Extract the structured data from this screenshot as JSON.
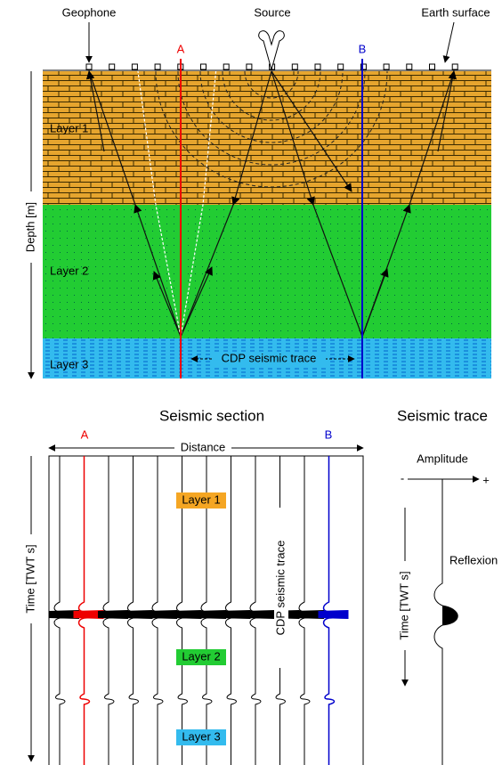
{
  "top": {
    "geophone": "Geophone",
    "source": "Source",
    "earth_surface": "Earth surface",
    "a": "A",
    "b": "B",
    "layers": [
      "Layer 1",
      "Layer 2",
      "Layer 3"
    ],
    "depth_axis": "Depth [m]",
    "cdp_label": "CDP seismic trace"
  },
  "bottom": {
    "section_title": "Seismic section",
    "trace_title": "Seismic trace",
    "distance": "Distance",
    "a": "A",
    "b": "B",
    "layers": [
      "Layer 1",
      "Layer 2",
      "Layer 3"
    ],
    "cdp_label": "CDP seismic trace",
    "time_axis": "Time [TWT s]",
    "amplitude": "Amplitude",
    "minus": "-",
    "plus": "+",
    "reflexion": "Reflexion",
    "trace_time_axis": "Time [TWT s]"
  }
}
